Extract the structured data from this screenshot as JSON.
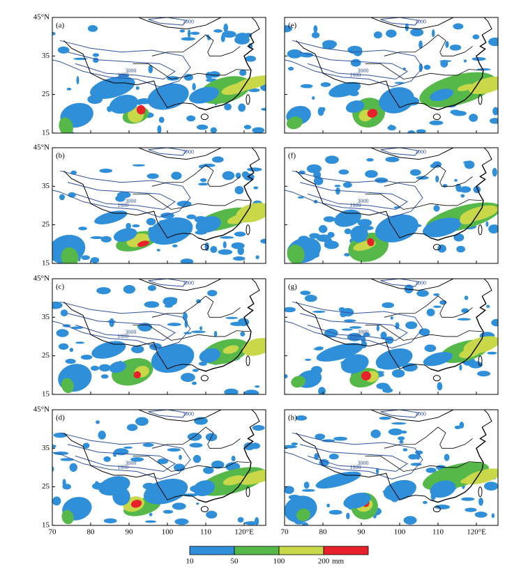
{
  "panels": [
    {
      "label": "(a)"
    },
    {
      "label": "(b)"
    },
    {
      "label": "(c)"
    },
    {
      "label": "(d)"
    },
    {
      "label": "(e)"
    },
    {
      "label": "(f)"
    },
    {
      "label": "(g)"
    },
    {
      "label": "(h)"
    }
  ],
  "lat_ticks": [
    "45°N",
    "35",
    "25",
    "15"
  ],
  "lon_ticks": [
    "70",
    "80",
    "90",
    "100",
    "110",
    "120°E"
  ],
  "contour_labels": [
    "1000",
    "3000"
  ],
  "colorbar": {
    "colors": [
      "#2f8fd8",
      "#56b848",
      "#c8d848",
      "#e8202a"
    ],
    "labels": [
      "10",
      "50",
      "100",
      "200"
    ],
    "unit": "mm"
  }
}
